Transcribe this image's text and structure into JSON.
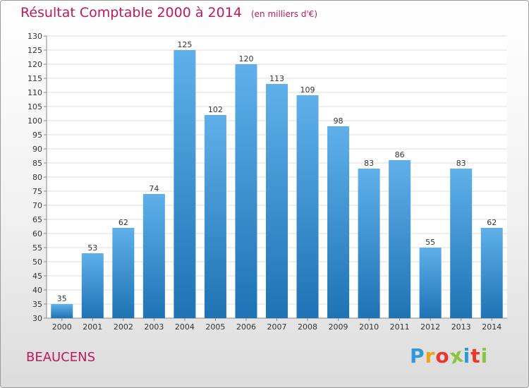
{
  "title": "Résultat Comptable 2000 à 2014",
  "subtitle": "(en milliers d'€)",
  "commune": "BEAUCENS",
  "logo": {
    "letters": [
      "P",
      "r",
      "o",
      "x",
      "i",
      "t",
      "i"
    ],
    "colors": [
      "#2f9ad8",
      "#f0a21e",
      "#e8392c",
      "#8bc53f",
      "#2f9ad8",
      "#e8392c",
      "#8bc53f"
    ]
  },
  "colors": {
    "accent": "#c0185c",
    "bar_top": "#5fb0ea",
    "bar_bottom": "#1e73b4",
    "grid": "#dddddd"
  },
  "chart_data": {
    "type": "bar",
    "title": "Résultat Comptable 2000 à 2014",
    "subtitle": "(en milliers d'€)",
    "categories": [
      "2000",
      "2001",
      "2002",
      "2003",
      "2004",
      "2005",
      "2006",
      "2007",
      "2008",
      "2009",
      "2010",
      "2011",
      "2012",
      "2013",
      "2014"
    ],
    "values": [
      35,
      53,
      62,
      74,
      125,
      102,
      120,
      113,
      109,
      98,
      83,
      86,
      55,
      83,
      62
    ],
    "ylim": [
      30,
      130
    ],
    "ytick_step": 5,
    "grid": true,
    "xlabel": "",
    "ylabel": ""
  }
}
